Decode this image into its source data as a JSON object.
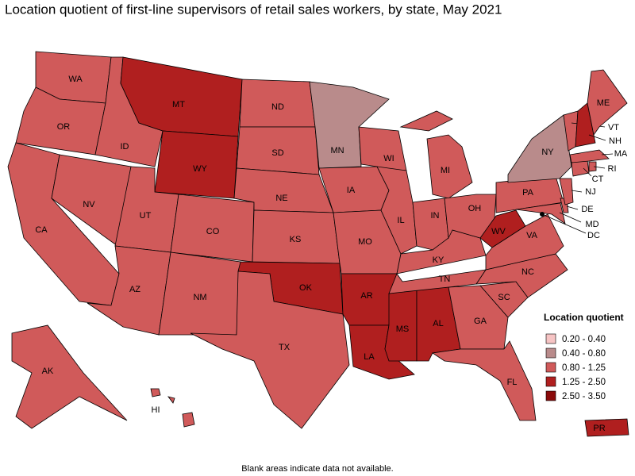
{
  "title": "Location quotient of first-line supervisors of retail sales workers, by state, May 2021",
  "legend": {
    "title": "Location quotient",
    "items": [
      {
        "label": "0.20 - 0.40",
        "color": "#f6c4c4"
      },
      {
        "label": "0.40 - 0.80",
        "color": "#b98b8b"
      },
      {
        "label": "0.80 - 1.25",
        "color": "#d05a5a"
      },
      {
        "label": "1.25 - 2.50",
        "color": "#b01f1f"
      },
      {
        "label": "2.50 - 3.50",
        "color": "#8a0a0a"
      }
    ]
  },
  "states": [
    {
      "label": "WA",
      "class": 2
    },
    {
      "label": "OR",
      "class": 2
    },
    {
      "label": "CA",
      "class": 2
    },
    {
      "label": "NV",
      "class": 2
    },
    {
      "label": "ID",
      "class": 2
    },
    {
      "label": "MT",
      "class": 3
    },
    {
      "label": "WY",
      "class": 3
    },
    {
      "label": "UT",
      "class": 2
    },
    {
      "label": "CO",
      "class": 2
    },
    {
      "label": "AZ",
      "class": 2
    },
    {
      "label": "NM",
      "class": 2
    },
    {
      "label": "ND",
      "class": 2
    },
    {
      "label": "SD",
      "class": 2
    },
    {
      "label": "NE",
      "class": 2
    },
    {
      "label": "KS",
      "class": 2
    },
    {
      "label": "OK",
      "class": 3
    },
    {
      "label": "TX",
      "class": 2
    },
    {
      "label": "MN",
      "class": 1
    },
    {
      "label": "IA",
      "class": 2
    },
    {
      "label": "WI",
      "class": 2
    },
    {
      "label": "MO",
      "class": 2
    },
    {
      "label": "AR",
      "class": 3
    },
    {
      "label": "LA",
      "class": 3
    },
    {
      "label": "MS",
      "class": 3
    },
    {
      "label": "AL",
      "class": 3
    },
    {
      "label": "GA",
      "class": 2
    },
    {
      "label": "FL",
      "class": 2
    },
    {
      "label": "SC",
      "class": 2
    },
    {
      "label": "NC",
      "class": 2
    },
    {
      "label": "TN",
      "class": 2
    },
    {
      "label": "KY",
      "class": 2
    },
    {
      "label": "IL",
      "class": 2
    },
    {
      "label": "IN",
      "class": 2
    },
    {
      "label": "MI",
      "class": 2
    },
    {
      "label": "OH",
      "class": 2
    },
    {
      "label": "WV",
      "class": 3
    },
    {
      "label": "VA",
      "class": 2
    },
    {
      "label": "PA",
      "class": 2
    },
    {
      "label": "NY",
      "class": 1
    },
    {
      "label": "MD",
      "class": 2
    },
    {
      "label": "DE",
      "class": 2
    },
    {
      "label": "NJ",
      "class": 2
    },
    {
      "label": "CT",
      "class": 2
    },
    {
      "label": "RI",
      "class": 2
    },
    {
      "label": "MA",
      "class": 2
    },
    {
      "label": "VT",
      "class": 2
    },
    {
      "label": "NH",
      "class": 3
    },
    {
      "label": "ME",
      "class": 2
    },
    {
      "label": "DC",
      "class": 2
    },
    {
      "label": "AK",
      "class": 2
    },
    {
      "label": "HI",
      "class": 2
    },
    {
      "label": "PR",
      "class": 3
    }
  ],
  "note": "Blank areas indicate data not available."
}
